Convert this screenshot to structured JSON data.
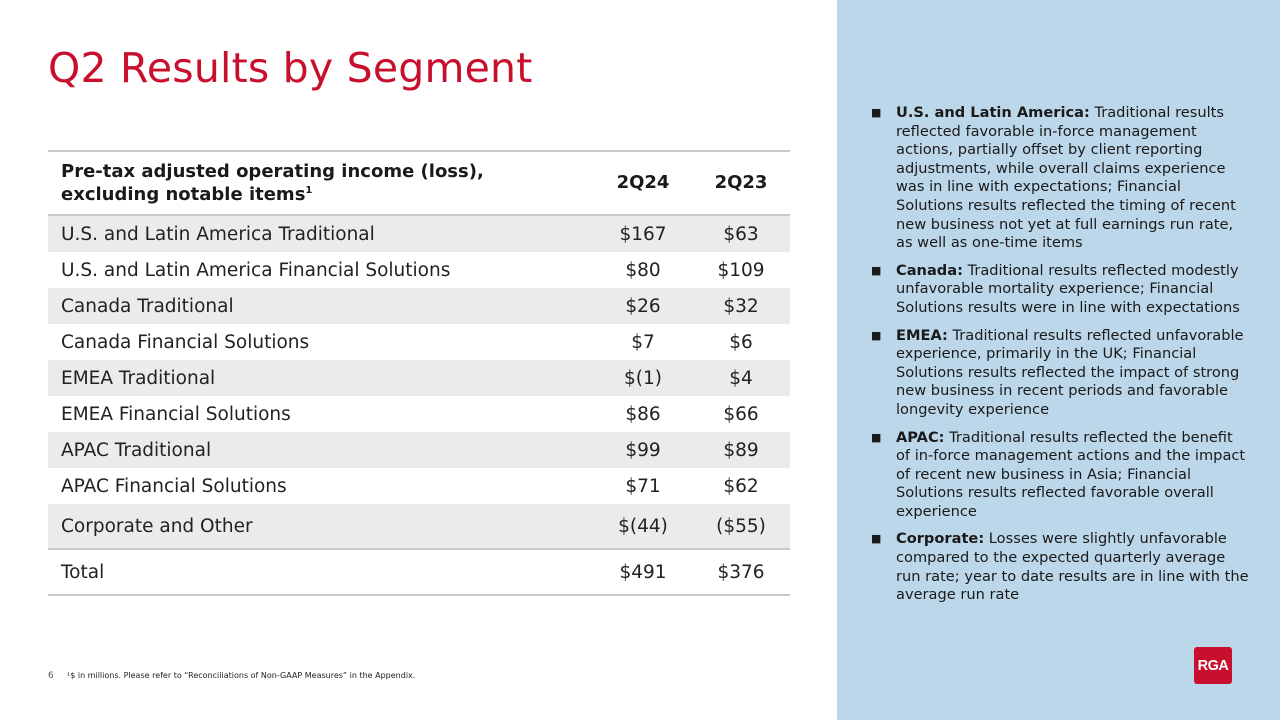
{
  "title": "Q2 Results by Segment",
  "table": {
    "header": {
      "segment_line1": "Pre-tax adjusted operating income (loss),",
      "segment_line2": "excluding notable items",
      "footnote_mark": "1",
      "col_a": "2Q24",
      "col_b": "2Q23"
    },
    "rows": [
      {
        "segment": "U.S. and Latin America Traditional",
        "a": "$167",
        "b": "$63"
      },
      {
        "segment": "U.S. and Latin America Financial Solutions",
        "a": "$80",
        "b": "$109"
      },
      {
        "segment": "Canada Traditional",
        "a": "$26",
        "b": "$32"
      },
      {
        "segment": "Canada Financial Solutions",
        "a": "$7",
        "b": "$6"
      },
      {
        "segment": "EMEA Traditional",
        "a": "$(1)",
        "b": "$4"
      },
      {
        "segment": "EMEA Financial Solutions",
        "a": "$86",
        "b": "$66"
      },
      {
        "segment": "APAC Traditional",
        "a": "$99",
        "b": "$89"
      },
      {
        "segment": "APAC Financial Solutions",
        "a": "$71",
        "b": "$62"
      },
      {
        "segment": "Corporate and Other",
        "a": "$(44)",
        "b": "($55)"
      }
    ],
    "total": {
      "segment": "Total",
      "a": "$491",
      "b": "$376"
    }
  },
  "footer": {
    "page_number": "6",
    "footnote": "¹$ in millions. Please refer to “Reconciliations  of Non-GAAP Measures” in the Appendix."
  },
  "notes": [
    {
      "lead": "U.S. and Latin America:",
      "text": " Traditional results reflected favorable in-force management actions, partially offset by client reporting adjustments, while overall claims experience was in line with expectations; Financial Solutions results reflected the timing of recent new business not yet at full earnings run rate, as well as one-time items"
    },
    {
      "lead": "Canada:",
      "text": " Traditional results reflected modestly unfavorable mortality experience; Financial Solutions results were in line with expectations"
    },
    {
      "lead": "EMEA:",
      "text": " Traditional results reflected unfavorable experience, primarily in the UK; Financial Solutions results reflected the impact of strong new business in recent periods and favorable longevity experience"
    },
    {
      "lead": "APAC:",
      "text": " Traditional results reflected the benefit of in-force management actions and the impact of recent new business in Asia; Financial Solutions results reflected favorable overall experience"
    },
    {
      "lead": "Corporate:",
      "text": " Losses were slightly unfavorable compared to the expected quarterly average run rate; year to date results are in line with the average run rate"
    }
  ],
  "logo": {
    "text": "RGA"
  },
  "colors": {
    "title": "#c8102e",
    "sidebar": "#bcd7ea",
    "row_shade": "#ebebeb",
    "rule": "#c9c9c9"
  }
}
